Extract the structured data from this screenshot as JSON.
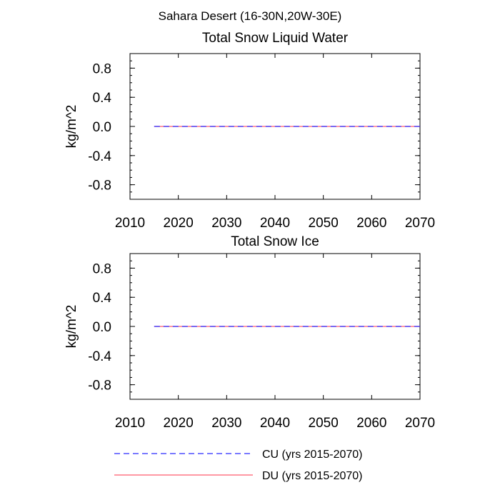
{
  "figure": {
    "title": "Sahara Desert (16-30N,20W-30E)"
  },
  "colors": {
    "cu": "#2b2bff",
    "du": "#ff5a6e",
    "axis": "#000000"
  },
  "chart_data": [
    {
      "type": "line",
      "title": "Total Snow Liquid Water",
      "xlabel": "",
      "ylabel": "kg/m^2",
      "xlim": [
        2010,
        2070
      ],
      "ylim": [
        -1,
        1
      ],
      "xticks": [
        2010,
        2020,
        2030,
        2040,
        2050,
        2060,
        2070
      ],
      "xtick_labels": [
        "2010",
        "2020",
        "2030",
        "2040",
        "2050",
        "2060",
        "2070"
      ],
      "yticks": [
        0.8,
        0.4,
        0.0,
        -0.4,
        -0.8
      ],
      "ytick_labels": [
        "0.8",
        "0.4",
        "0.0",
        "-0.4",
        "-0.8"
      ],
      "grid": false,
      "series": [
        {
          "name": "CU (yrs 2015-2070)",
          "style": "dashed",
          "x": [
            2015,
            2070
          ],
          "values": [
            0,
            0
          ]
        },
        {
          "name": "DU (yrs 2015-2070)",
          "style": "solid",
          "x": [
            2015,
            2070
          ],
          "values": [
            0,
            0
          ]
        }
      ]
    },
    {
      "type": "line",
      "title": "Total Snow Ice",
      "xlabel": "",
      "ylabel": "kg/m^2",
      "xlim": [
        2010,
        2070
      ],
      "ylim": [
        -1,
        1
      ],
      "xticks": [
        2010,
        2020,
        2030,
        2040,
        2050,
        2060,
        2070
      ],
      "xtick_labels": [
        "2010",
        "2020",
        "2030",
        "2040",
        "2050",
        "2060",
        "2070"
      ],
      "yticks": [
        0.8,
        0.4,
        0.0,
        -0.4,
        -0.8
      ],
      "ytick_labels": [
        "0.8",
        "0.4",
        "0.0",
        "-0.4",
        "-0.8"
      ],
      "grid": false,
      "series": [
        {
          "name": "CU (yrs 2015-2070)",
          "style": "dashed",
          "x": [
            2015,
            2070
          ],
          "values": [
            0,
            0
          ]
        },
        {
          "name": "DU (yrs 2015-2070)",
          "style": "solid",
          "x": [
            2015,
            2070
          ],
          "values": [
            0,
            0
          ]
        }
      ]
    }
  ],
  "legend": {
    "placement": "bottom",
    "items": [
      {
        "label": "CU (yrs 2015-2070)",
        "style": "dashed"
      },
      {
        "label": "DU (yrs 2015-2070)",
        "style": "solid"
      }
    ]
  }
}
